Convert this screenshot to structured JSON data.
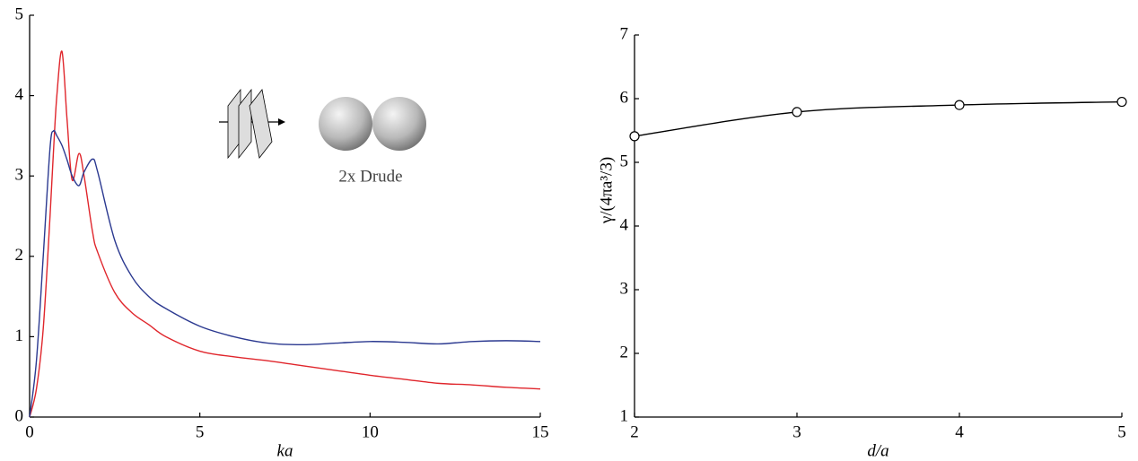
{
  "chart_data": [
    {
      "type": "line",
      "x": [
        0,
        0.2,
        0.4,
        0.6,
        0.7,
        0.8,
        0.95,
        1.1,
        1.25,
        1.45,
        1.6,
        1.85,
        2,
        2.5,
        3,
        3.5,
        4,
        5,
        6,
        7,
        8,
        9,
        10,
        11,
        12,
        13,
        14,
        15
      ],
      "series": [
        {
          "color": "#e0262c",
          "values": [
            0,
            0.35,
            1.1,
            2.5,
            3.3,
            4.0,
            4.55,
            3.7,
            2.95,
            3.28,
            3.0,
            2.3,
            2.05,
            1.55,
            1.3,
            1.15,
            1.0,
            0.82,
            0.75,
            0.7,
            0.64,
            0.58,
            0.52,
            0.47,
            0.42,
            0.4,
            0.37,
            0.35
          ]
        },
        {
          "color": "#2b3990",
          "values": [
            0,
            0.7,
            2.0,
            3.35,
            3.56,
            3.5,
            3.38,
            3.2,
            3.0,
            2.88,
            3.05,
            3.21,
            3.05,
            2.2,
            1.75,
            1.5,
            1.35,
            1.13,
            1.0,
            0.92,
            0.9,
            0.92,
            0.94,
            0.93,
            0.91,
            0.94,
            0.95,
            0.94
          ]
        }
      ],
      "xlabel": "ka",
      "xlim": [
        0,
        15
      ],
      "xticks": [
        0,
        5,
        10,
        15
      ],
      "ylim": [
        0,
        5
      ],
      "yticks": [
        0,
        1,
        2,
        3,
        4,
        5
      ],
      "annotation": "2x Drude"
    },
    {
      "type": "line",
      "x": [
        2,
        3,
        4,
        5
      ],
      "series": [
        {
          "color": "#000000",
          "marker": "circle",
          "values": [
            5.41,
            5.79,
            5.9,
            5.95
          ]
        }
      ],
      "xlabel": "d/a",
      "ylabel": "γ/(4πa³/3)",
      "xlim": [
        2,
        5
      ],
      "xticks": [
        2,
        3,
        4,
        5
      ],
      "ylim": [
        1,
        7
      ],
      "yticks": [
        1,
        2,
        3,
        4,
        5,
        6,
        7
      ]
    }
  ]
}
